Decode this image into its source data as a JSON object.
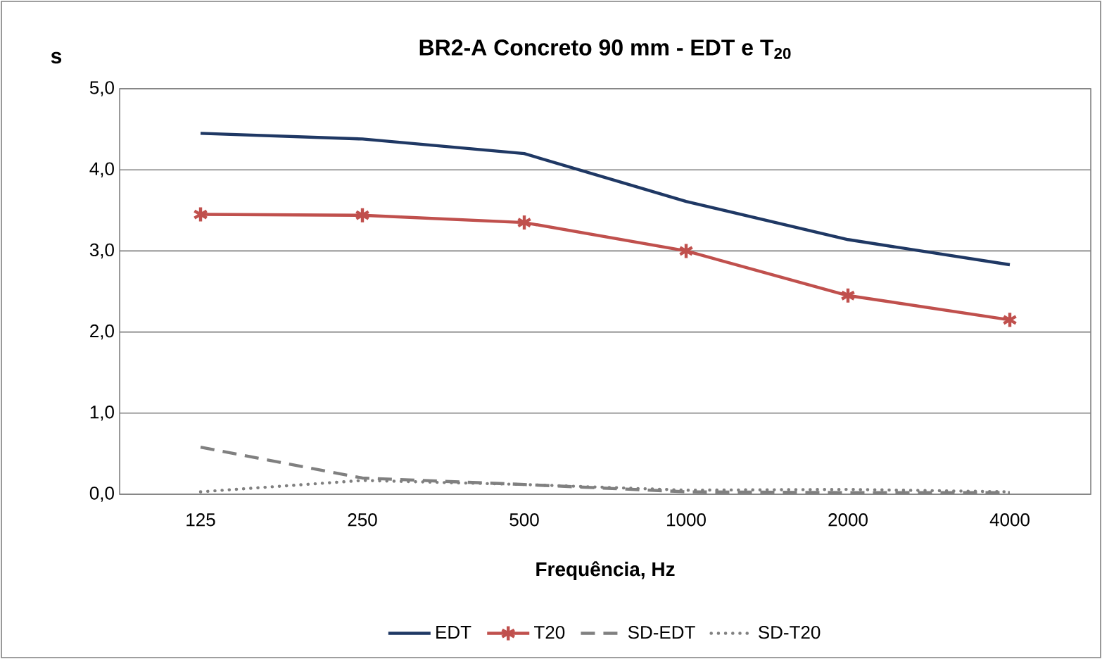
{
  "chart_data": {
    "type": "line",
    "title": "BR2-A Concreto 90 mm - EDT e T$_{20}$",
    "xlabel": "Frequência, Hz",
    "ylabel": "s",
    "categories": [
      "125",
      "250",
      "500",
      "1000",
      "2000",
      "4000"
    ],
    "series": [
      {
        "name": "EDT",
        "color": "#1f3864",
        "marker": "none",
        "line_style": "solid",
        "values": [
          4.45,
          4.38,
          4.2,
          3.61,
          3.14,
          2.83
        ]
      },
      {
        "name": "T20",
        "color": "#c0504d",
        "marker": "cross",
        "line_style": "solid",
        "values": [
          3.45,
          3.44,
          3.35,
          3.0,
          2.45,
          2.15
        ]
      },
      {
        "name": "SD-EDT",
        "color": "#808080",
        "marker": "none",
        "line_style": "dashed",
        "values": [
          0.58,
          0.2,
          0.12,
          0.03,
          0.02,
          0.02
        ]
      },
      {
        "name": "SD-T20",
        "color": "#808080",
        "marker": "none",
        "line_style": "dotted",
        "values": [
          0.03,
          0.17,
          0.12,
          0.05,
          0.06,
          0.03
        ]
      }
    ],
    "ylim": [
      0,
      5
    ],
    "yticks": [
      {
        "value": 0,
        "label": "0,0"
      },
      {
        "value": 1,
        "label": "1,0"
      },
      {
        "value": 2,
        "label": "2,0"
      },
      {
        "value": 3,
        "label": "3,0"
      },
      {
        "value": 4,
        "label": "4,0"
      },
      {
        "value": 5,
        "label": "5,0"
      }
    ],
    "grid": "y",
    "legend": "bottom"
  }
}
